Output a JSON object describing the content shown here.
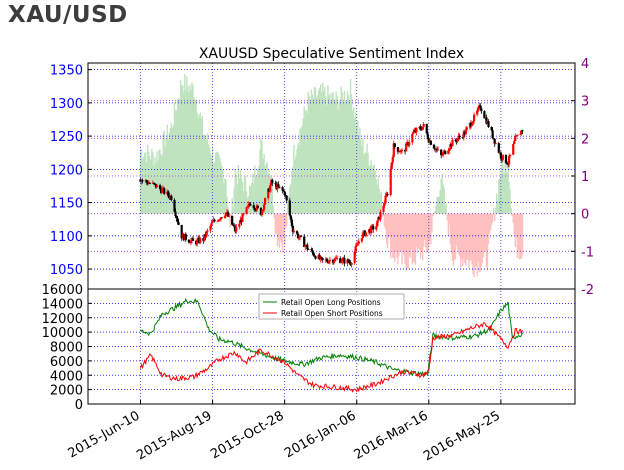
{
  "heading": "XAU/USD",
  "colors": {
    "price_axis": "#0000ff",
    "ssi_axis": "#800080",
    "long_fill": "#bfe3bf",
    "short_fill": "#ffc0c0",
    "long_line": "#008000",
    "short_line": "#ff0000",
    "candle_up": "#ff0000",
    "candle_down": "#000000",
    "grid_date": "#3333cc",
    "grid_price": "#0000ff",
    "grid_ssi": "#9933cc"
  },
  "chart_data": [
    {
      "type": "candlestick+bar",
      "title": "XAUUSD Speculative Sentiment Index",
      "x_ticks": [
        "2015-Jun-10",
        "2015-Aug-19",
        "2015-Oct-28",
        "2016-Jan-06",
        "2016-Mar-16",
        "2016-May-25"
      ],
      "x_range": [
        "2015-Apr-20",
        "2016-Aug-05"
      ],
      "y_left_label": "",
      "y_left_ticks": [
        1050,
        1100,
        1150,
        1200,
        1250,
        1300,
        1350
      ],
      "y_left_range": [
        1020,
        1360
      ],
      "y_right_ticks": [
        -2,
        -1,
        0,
        1,
        2,
        3,
        4
      ],
      "y_right_range": [
        -2,
        4
      ],
      "grid": true,
      "price_keypoints": [
        [
          "2015-Jun-10",
          1185
        ],
        [
          "2015-Jun-25",
          1175
        ],
        [
          "2015-Jul-10",
          1158
        ],
        [
          "2015-Jul-20",
          1100
        ],
        [
          "2015-Aug-01",
          1090
        ],
        [
          "2015-Aug-10",
          1095
        ],
        [
          "2015-Aug-19",
          1120
        ],
        [
          "2015-Sep-01",
          1135
        ],
        [
          "2015-Sep-10",
          1108
        ],
        [
          "2015-Sep-25",
          1150
        ],
        [
          "2015-Oct-05",
          1135
        ],
        [
          "2015-Oct-15",
          1180
        ],
        [
          "2015-Oct-28",
          1165
        ],
        [
          "2015-Nov-05",
          1110
        ],
        [
          "2015-Nov-20",
          1080
        ],
        [
          "2015-Dec-03",
          1062
        ],
        [
          "2015-Dec-18",
          1065
        ],
        [
          "2015-Dec-31",
          1060
        ],
        [
          "2016-Jan-10",
          1100
        ],
        [
          "2016-Jan-25",
          1115
        ],
        [
          "2016-Feb-05",
          1165
        ],
        [
          "2016-Feb-11",
          1235
        ],
        [
          "2016-Feb-20",
          1225
        ],
        [
          "2016-Mar-01",
          1255
        ],
        [
          "2016-Mar-11",
          1265
        ],
        [
          "2016-Mar-16",
          1245
        ],
        [
          "2016-Mar-28",
          1220
        ],
        [
          "2016-Apr-08",
          1240
        ],
        [
          "2016-Apr-20",
          1255
        ],
        [
          "2016-Apr-30",
          1280
        ],
        [
          "2016-May-05",
          1295
        ],
        [
          "2016-May-12",
          1270
        ],
        [
          "2016-May-25",
          1220
        ],
        [
          "2016-Jun-01",
          1210
        ],
        [
          "2016-Jun-08",
          1245
        ],
        [
          "2016-Jun-15",
          1260
        ]
      ],
      "ssi_bars": [
        [
          "2015-Jun-10",
          1.7
        ],
        [
          "2015-Jun-25",
          1.5
        ],
        [
          "2015-Jul-10",
          2.3
        ],
        [
          "2015-Jul-20",
          3.5
        ],
        [
          "2015-Aug-01",
          3.3
        ],
        [
          "2015-Aug-10",
          2.2
        ],
        [
          "2015-Aug-19",
          1.6
        ],
        [
          "2015-Sep-01",
          1.0
        ],
        [
          "2015-Sep-05",
          -0.5
        ],
        [
          "2015-Sep-10",
          1.1
        ],
        [
          "2015-Sep-25",
          0.6
        ],
        [
          "2015-Oct-05",
          1.8
        ],
        [
          "2015-Oct-15",
          1.1
        ],
        [
          "2015-Oct-20",
          -0.6
        ],
        [
          "2015-Oct-28",
          -0.8
        ],
        [
          "2015-Nov-05",
          1.5
        ],
        [
          "2015-Nov-20",
          3.0
        ],
        [
          "2015-Dec-03",
          3.2
        ],
        [
          "2015-Dec-18",
          3.0
        ],
        [
          "2015-Dec-31",
          3.3
        ],
        [
          "2016-Jan-10",
          1.9
        ],
        [
          "2016-Jan-25",
          1.2
        ],
        [
          "2016-Feb-05",
          -0.7
        ],
        [
          "2016-Feb-11",
          -1.1
        ],
        [
          "2016-Feb-20",
          -1.3
        ],
        [
          "2016-Mar-01",
          -1.2
        ],
        [
          "2016-Mar-11",
          -1.0
        ],
        [
          "2016-Mar-16",
          -0.9
        ],
        [
          "2016-Mar-28",
          1.0
        ],
        [
          "2016-Apr-08",
          -1.1
        ],
        [
          "2016-Apr-20",
          -1.2
        ],
        [
          "2016-Apr-30",
          -1.4
        ],
        [
          "2016-May-05",
          -1.3
        ],
        [
          "2016-May-12",
          -1.2
        ],
        [
          "2016-May-25",
          1.2
        ],
        [
          "2016-Jun-01",
          1.4
        ],
        [
          "2016-Jun-08",
          -0.9
        ],
        [
          "2016-Jun-15",
          -1.0
        ]
      ]
    },
    {
      "type": "line",
      "x_range": [
        "2015-Apr-20",
        "2016-Aug-05"
      ],
      "y_ticks": [
        0,
        2000,
        4000,
        6000,
        8000,
        10000,
        12000,
        14000,
        16000
      ],
      "y_range": [
        0,
        16000
      ],
      "grid": true,
      "legend_position": "top-center",
      "series": [
        {
          "name": "Retail Open Long Positions",
          "points": [
            [
              "2015-Jun-10",
              10200
            ],
            [
              "2015-Jun-20",
              9800
            ],
            [
              "2015-Jul-01",
              12500
            ],
            [
              "2015-Jul-15",
              13500
            ],
            [
              "2015-Jul-25",
              14400
            ],
            [
              "2015-Aug-05",
              14200
            ],
            [
              "2015-Aug-15",
              10500
            ],
            [
              "2015-Aug-25",
              9000
            ],
            [
              "2015-Sep-05",
              8700
            ],
            [
              "2015-Sep-20",
              7800
            ],
            [
              "2015-Oct-05",
              7000
            ],
            [
              "2015-Oct-20",
              6300
            ],
            [
              "2015-Oct-28",
              6000
            ],
            [
              "2015-Nov-15",
              5500
            ],
            [
              "2015-Dec-01",
              6400
            ],
            [
              "2015-Dec-20",
              6800
            ],
            [
              "2016-Jan-06",
              6500
            ],
            [
              "2016-Jan-25",
              5800
            ],
            [
              "2016-Feb-10",
              4800
            ],
            [
              "2016-Mar-01",
              4300
            ],
            [
              "2016-Mar-15",
              4200
            ],
            [
              "2016-Mar-20",
              9500
            ],
            [
              "2016-Apr-10",
              9200
            ],
            [
              "2016-May-01",
              9500
            ],
            [
              "2016-May-15",
              10500
            ],
            [
              "2016-May-25",
              13000
            ],
            [
              "2016-Jun-01",
              14000
            ],
            [
              "2016-Jun-05",
              9200
            ],
            [
              "2016-Jun-15",
              9800
            ]
          ]
        },
        {
          "name": "Retail Open Short Positions",
          "points": [
            [
              "2015-Jun-10",
              5000
            ],
            [
              "2015-Jun-20",
              6800
            ],
            [
              "2015-Jul-01",
              4000
            ],
            [
              "2015-Jul-15",
              3500
            ],
            [
              "2015-Aug-01",
              3800
            ],
            [
              "2015-Aug-15",
              5000
            ],
            [
              "2015-Aug-25",
              6200
            ],
            [
              "2015-Sep-10",
              7200
            ],
            [
              "2015-Sep-20",
              5800
            ],
            [
              "2015-Oct-05",
              7500
            ],
            [
              "2015-Oct-28",
              5800
            ],
            [
              "2015-Nov-10",
              4000
            ],
            [
              "2015-Nov-25",
              2600
            ],
            [
              "2015-Dec-20",
              2300
            ],
            [
              "2016-Jan-06",
              2000
            ],
            [
              "2016-Jan-25",
              2800
            ],
            [
              "2016-Feb-05",
              3600
            ],
            [
              "2016-Feb-20",
              4500
            ],
            [
              "2016-Mar-10",
              4000
            ],
            [
              "2016-Mar-16",
              4500
            ],
            [
              "2016-Mar-20",
              9200
            ],
            [
              "2016-Apr-10",
              9600
            ],
            [
              "2016-Apr-25",
              10500
            ],
            [
              "2016-May-10",
              11200
            ],
            [
              "2016-May-25",
              9000
            ],
            [
              "2016-Jun-01",
              8000
            ],
            [
              "2016-Jun-08",
              10200
            ],
            [
              "2016-Jun-15",
              10000
            ]
          ]
        }
      ]
    }
  ]
}
